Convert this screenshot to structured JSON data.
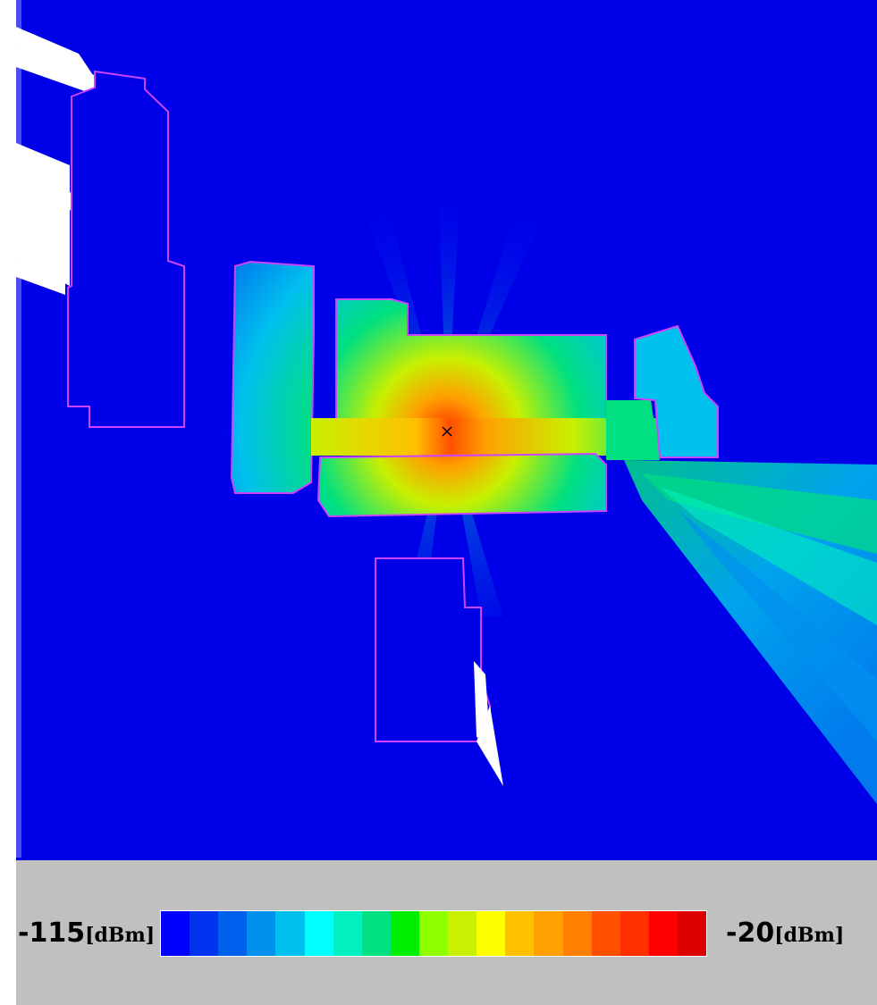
{
  "legend": {
    "min_value": "-115",
    "max_value": "-20",
    "unit": "[dBm]",
    "colors": [
      "#0000ff",
      "#0033ee",
      "#0060ee",
      "#0090ee",
      "#00c0ee",
      "#00ffff",
      "#00f0c0",
      "#00e080",
      "#00ee00",
      "#90ff00",
      "#c8f000",
      "#ffff00",
      "#ffc000",
      "#ffa000",
      "#ff8000",
      "#ff5000",
      "#ff3000",
      "#ff0000",
      "#dd0000"
    ]
  },
  "map": {
    "background_color": "#0000e8",
    "building_outline_color": "#cc44ff",
    "transmitter_marker": "x-mark-icon"
  }
}
